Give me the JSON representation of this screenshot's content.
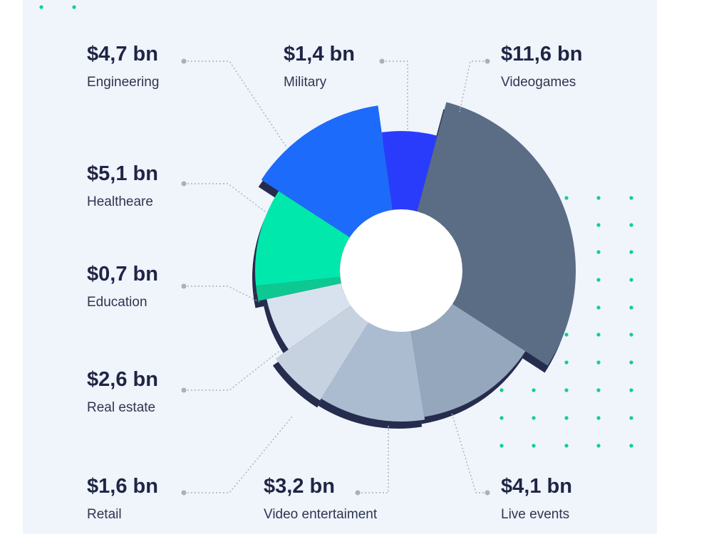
{
  "chart_data": {
    "type": "pie",
    "variant": "donut",
    "title": "",
    "slices": [
      {
        "value_label": "$11,6 bn",
        "label": "Videogames",
        "value": 11.6,
        "color": "#5a6d85"
      },
      {
        "value_label": "$4,1 bn",
        "label": "Live events",
        "value": 4.1,
        "color": "#94a7bd"
      },
      {
        "value_label": "$3,2 bn",
        "label": "Video entertaiment",
        "value": 3.2,
        "color": "#abbbd0"
      },
      {
        "value_label": "$1,6 bn",
        "label": "Retail",
        "value": 1.6,
        "color": "#c6d2e0"
      },
      {
        "value_label": "$2,6 bn",
        "label": "Real estate",
        "value": 2.6,
        "color": "#d8e2ee"
      },
      {
        "value_label": "$0,7 bn",
        "label": "Education",
        "value": 0.7,
        "color": "#0ec892"
      },
      {
        "value_label": "$5,1 bn",
        "label": "Healtheare",
        "value": 5.1,
        "color": "#00e8ac"
      },
      {
        "value_label": "$4,7 bn",
        "label": "Engineering",
        "value": 4.7,
        "color": "#1d6bfb"
      },
      {
        "value_label": "$1,4 bn",
        "label": "Military",
        "value": 1.4,
        "color": "#2a3cfb"
      }
    ]
  },
  "colors": {
    "background": "#f0f4fb",
    "shadow": "#262c4d",
    "accent_dots": "#10cf94"
  }
}
